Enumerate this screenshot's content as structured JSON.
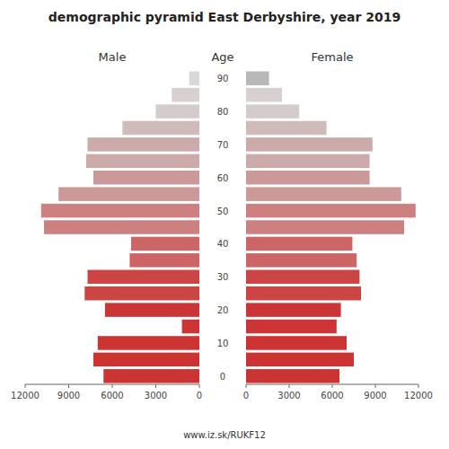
{
  "chart_data": {
    "type": "bar",
    "orientation": "horizontal",
    "title": "demographic pyramid East Derbyshire, year 2019",
    "ylabel": "Age",
    "footnote": "www.iz.sk/RUKF12",
    "categories": [
      0,
      null,
      10,
      null,
      20,
      null,
      30,
      null,
      40,
      null,
      50,
      null,
      60,
      null,
      70,
      null,
      80,
      null,
      90
    ],
    "series": [
      {
        "name": "Male",
        "values": [
          6600,
          7300,
          7000,
          1200,
          6500,
          7900,
          7700,
          4800,
          4700,
          10700,
          10900,
          9700,
          7300,
          7800,
          7700,
          5300,
          3000,
          1900,
          700
        ],
        "colors": [
          "#cc3333",
          "#cc3333",
          "#cc3333",
          "#cc3535",
          "#cc3535",
          "#cc4444",
          "#cc4444",
          "#cc6666",
          "#cc6666",
          "#cc8080",
          "#cc8080",
          "#cc9999",
          "#cc9999",
          "#ccaaaa",
          "#ccaaaa",
          "#d0bbbb",
          "#d4cccc",
          "#d8d0d0",
          "#d8d8d8"
        ]
      },
      {
        "name": "Female",
        "values": [
          6500,
          7500,
          7000,
          6300,
          6600,
          8000,
          7900,
          7700,
          7400,
          11000,
          11800,
          10800,
          8600,
          8600,
          8800,
          5600,
          3700,
          2500,
          1600
        ],
        "colors": [
          "#cc3333",
          "#cc3333",
          "#cc3333",
          "#cc3535",
          "#cc3535",
          "#cc4444",
          "#cc4444",
          "#cc6666",
          "#cc6666",
          "#cc8080",
          "#cc8080",
          "#cc9999",
          "#cc9999",
          "#ccaaaa",
          "#ccaaaa",
          "#d0bbbb",
          "#d4cccc",
          "#d8d0d0",
          "#b8b8b8"
        ]
      }
    ],
    "xlim": [
      0,
      12000
    ],
    "xticks": [
      0,
      3000,
      6000,
      9000,
      12000
    ]
  }
}
